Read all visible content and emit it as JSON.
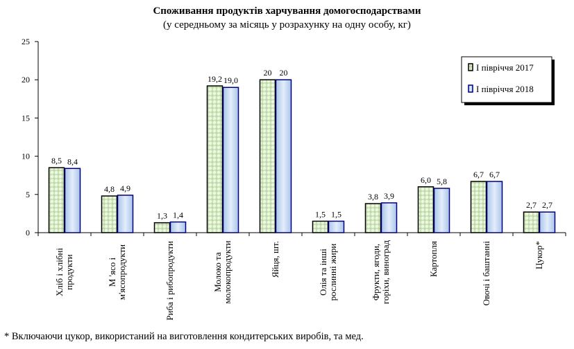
{
  "chart_data": {
    "type": "bar",
    "title": "Споживання продуктів харчування домогосподарствами",
    "subtitle": "(у середньому за місяць у розрахунку  на одну особу, кг)",
    "categories": [
      [
        "Хліб і хлібні",
        "продукти"
      ],
      [
        "М 'ясо і",
        "м'ясопродукти"
      ],
      [
        "Риба і рибопродукти"
      ],
      [
        "Молоко та",
        "молокопродукти"
      ],
      [
        "Яйця, шт."
      ],
      [
        "Олія та інші",
        "рослинні жири"
      ],
      [
        "Фрукти, ягоди,",
        "горіхи, виноград"
      ],
      [
        "Картопля"
      ],
      [
        "Овочі і баштанні"
      ],
      [
        "Цукор*"
      ]
    ],
    "series": [
      {
        "name": "І півріччя 2017",
        "values": [
          8.5,
          4.8,
          1.3,
          19.2,
          20,
          1.5,
          3.8,
          6.0,
          6.7,
          2.7
        ],
        "labels": [
          "8,5",
          "4,8",
          "1,3",
          "19,2",
          "20",
          "1,5",
          "3,8",
          "6,0",
          "6,7",
          "2,7"
        ],
        "color": "#a9d08e"
      },
      {
        "name": "І півріччя 2018",
        "values": [
          8.4,
          4.9,
          1.4,
          19.0,
          20,
          1.5,
          3.9,
          5.8,
          6.7,
          2.7
        ],
        "labels": [
          "8,4",
          "4,9",
          "1,4",
          "19,0",
          "20",
          "1,5",
          "3,9",
          "5,8",
          "6,7",
          "2,7"
        ],
        "color": "#b4cdf0"
      }
    ],
    "ylim": [
      0,
      25
    ],
    "yticks": [
      0,
      5,
      10,
      15,
      20,
      25
    ],
    "grid": false,
    "legend": "top-right",
    "footnote": "* Включаючи цукор, використаний на виготовлення кондитерських виробів, та мед."
  }
}
